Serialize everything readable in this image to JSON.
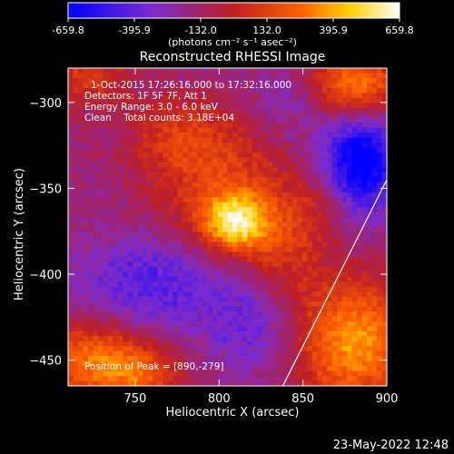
{
  "colorbar": {
    "ticks": [
      "-659.8",
      "-395.9",
      "-132.0",
      "132.0",
      "395.9",
      "659.8"
    ],
    "units_label": "(photons cm⁻² s⁻¹ asec⁻²)",
    "colors": [
      "#0000ff",
      "#7a2bd0",
      "#c02020",
      "#ff6000",
      "#ffd000",
      "#ffffff"
    ]
  },
  "title": "Reconstructed RHESSI Image",
  "info": {
    "line1": "1-Oct-2015 17:26:16.000 to 17:32:16.000",
    "line2": "Detectors: 1F 5F 7F, Att 1",
    "line3": "Energy Range: 3.0 - 6.0 keV",
    "line4": "Clean    Total counts: 3.18E+04",
    "peak": "Position of Peak = [890,-279]"
  },
  "timestamp": "23-May-2022 12:48",
  "chart_data": {
    "type": "heatmap",
    "title": "Reconstructed RHESSI Image",
    "xlabel": "Heliocentric X (arcsec)",
    "ylabel": "Heliocentric Y (arcsec)",
    "xlim": [
      710,
      900
    ],
    "ylim": [
      -465,
      -280
    ],
    "xticks": [
      750,
      800,
      850,
      900
    ],
    "yticks": [
      -300,
      -350,
      -400,
      -450
    ],
    "value_range": [
      -659.8,
      659.8
    ],
    "peak_position": [
      890,
      -279
    ],
    "limb_line": [
      [
        838,
        -465
      ],
      [
        900,
        -345
      ]
    ],
    "blobs": [
      {
        "x": 810,
        "y": -370,
        "amp": 620,
        "sx": 14,
        "sy": 12
      },
      {
        "x": 800,
        "y": -345,
        "amp": 280,
        "sx": 32,
        "sy": 28
      },
      {
        "x": 775,
        "y": -318,
        "amp": 180,
        "sx": 20,
        "sy": 14
      },
      {
        "x": 840,
        "y": -385,
        "amp": 220,
        "sx": 16,
        "sy": 22
      },
      {
        "x": 860,
        "y": -360,
        "amp": 120,
        "sx": 12,
        "sy": 12
      },
      {
        "x": 880,
        "y": -290,
        "amp": 500,
        "sx": 20,
        "sy": 14
      },
      {
        "x": 880,
        "y": -440,
        "amp": 540,
        "sx": 24,
        "sy": 26
      },
      {
        "x": 725,
        "y": -450,
        "amp": 450,
        "sx": 24,
        "sy": 16
      },
      {
        "x": 755,
        "y": -460,
        "amp": 260,
        "sx": 18,
        "sy": 12
      },
      {
        "x": 720,
        "y": -285,
        "amp": 260,
        "sx": 18,
        "sy": 14
      }
    ],
    "troughs": [
      {
        "x": 885,
        "y": -335,
        "amp": -560,
        "sx": 16,
        "sy": 20
      },
      {
        "x": 760,
        "y": -405,
        "amp": -280,
        "sx": 30,
        "sy": 20
      },
      {
        "x": 820,
        "y": -430,
        "amp": -200,
        "sx": 20,
        "sy": 20
      },
      {
        "x": 845,
        "y": -300,
        "amp": -160,
        "sx": 20,
        "sy": 16
      }
    ]
  }
}
